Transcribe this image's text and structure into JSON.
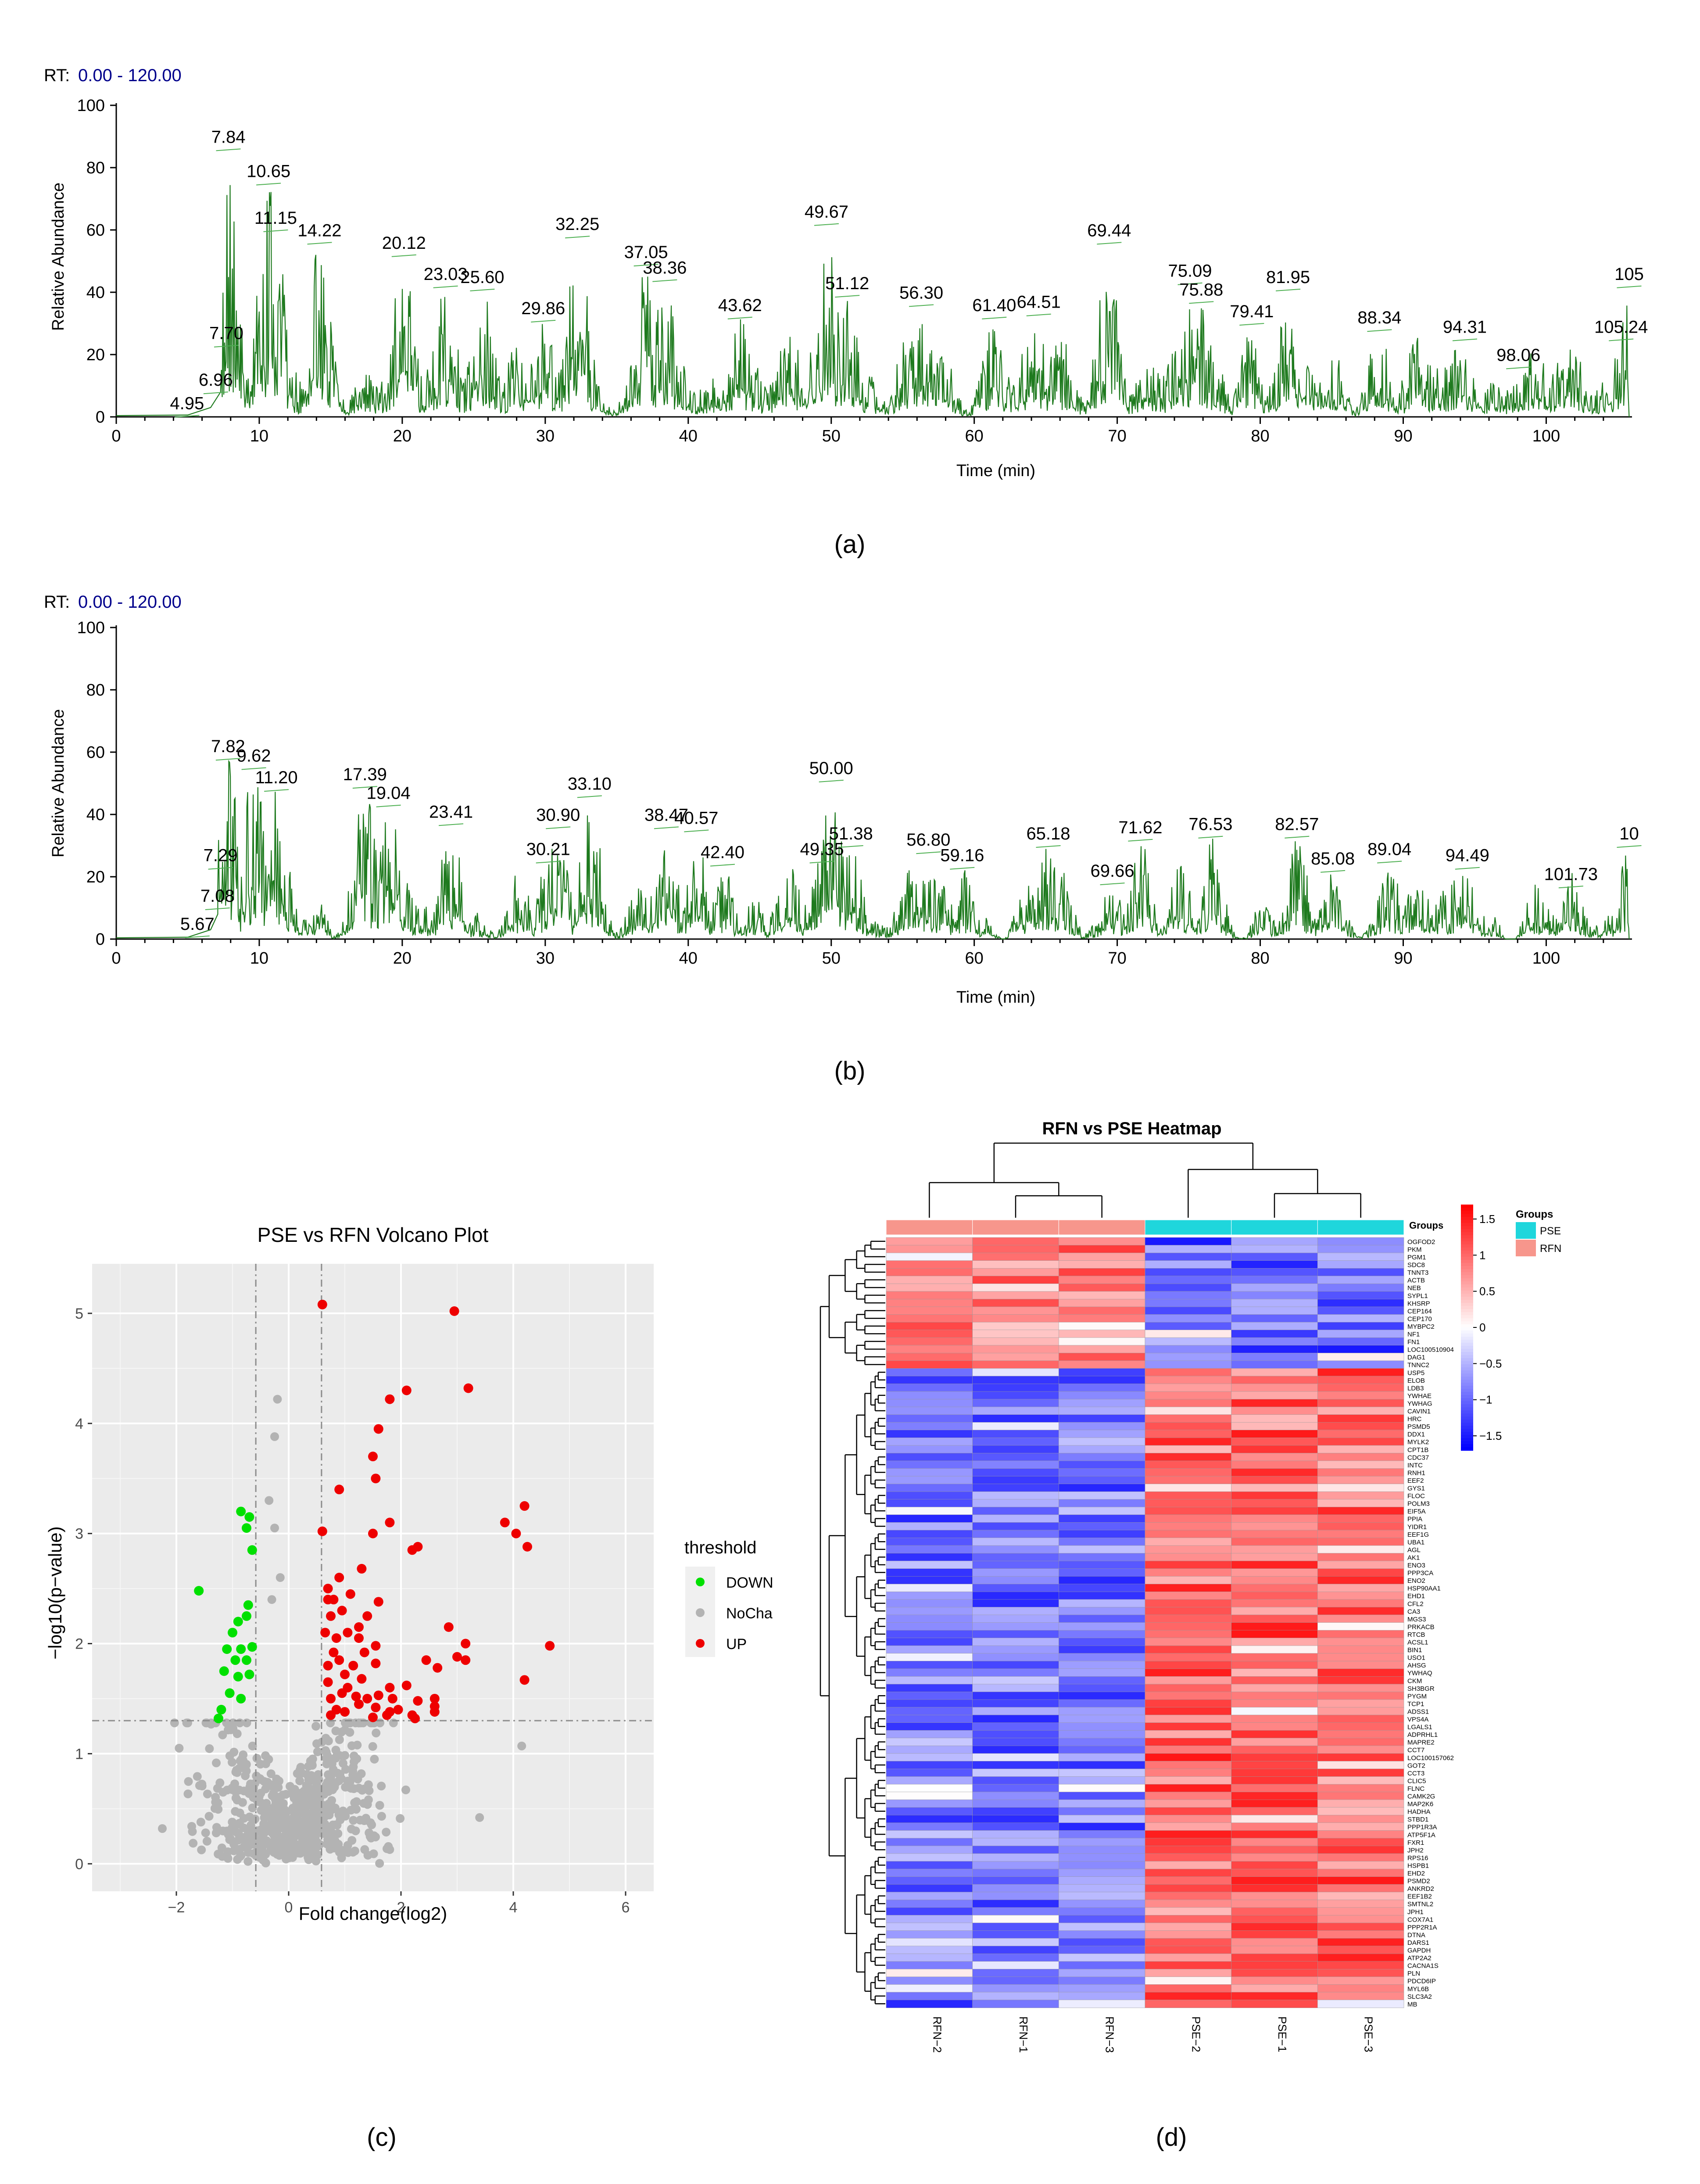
{
  "colors": {
    "chromatogram": "#1e7a1e",
    "down": "#00e000",
    "nocha": "#b3b3b3",
    "up": "#ee0000",
    "heat_low": "#0000ff",
    "heat_mid": "#ffffff",
    "heat_high": "#ff0000",
    "pse_bar": "#1fd6dc",
    "rfn_bar": "#f7968c",
    "rt_label_color": "#00008b"
  },
  "panel_labels": [
    "(a)",
    "(b)",
    "(c)",
    "(d)"
  ],
  "chart_data": [
    {
      "id": "a",
      "type": "line",
      "rt_label": "RT:",
      "rt_range": "0.00 - 120.00",
      "xlabel": "Time (min)",
      "ylabel": "Relative Abundance",
      "xlim": [
        0,
        106
      ],
      "ylim": [
        0,
        100
      ],
      "xticks": [
        "0",
        "10",
        "20",
        "30",
        "40",
        "50",
        "60",
        "70",
        "80",
        "90",
        "100"
      ],
      "yticks": [
        "0",
        "20",
        "40",
        "60",
        "80",
        "100"
      ],
      "annotations": [
        {
          "x": 4.95,
          "y": 0.5,
          "label": "4.95"
        },
        {
          "x": 6.96,
          "y": 8,
          "label": "6.96"
        },
        {
          "x": 7.7,
          "y": 23,
          "label": "7.70"
        },
        {
          "x": 7.84,
          "y": 86,
          "label": "7.84"
        },
        {
          "x": 10.65,
          "y": 75,
          "label": "10.65"
        },
        {
          "x": 11.15,
          "y": 60,
          "label": "11.15"
        },
        {
          "x": 14.22,
          "y": 56,
          "label": "14.22"
        },
        {
          "x": 20.12,
          "y": 52,
          "label": "20.12"
        },
        {
          "x": 23.03,
          "y": 42,
          "label": "23.03"
        },
        {
          "x": 25.6,
          "y": 41,
          "label": "25.60"
        },
        {
          "x": 29.86,
          "y": 31,
          "label": "29.86"
        },
        {
          "x": 32.25,
          "y": 58,
          "label": "32.25"
        },
        {
          "x": 37.05,
          "y": 49,
          "label": "37.05"
        },
        {
          "x": 38.36,
          "y": 44,
          "label": "38.36"
        },
        {
          "x": 43.62,
          "y": 32,
          "label": "43.62"
        },
        {
          "x": 49.67,
          "y": 62,
          "label": "49.67"
        },
        {
          "x": 51.12,
          "y": 39,
          "label": "51.12"
        },
        {
          "x": 56.3,
          "y": 36,
          "label": "56.30"
        },
        {
          "x": 61.4,
          "y": 32,
          "label": "61.40"
        },
        {
          "x": 64.51,
          "y": 33,
          "label": "64.51"
        },
        {
          "x": 69.44,
          "y": 56,
          "label": "69.44"
        },
        {
          "x": 75.09,
          "y": 43,
          "label": "75.09"
        },
        {
          "x": 75.88,
          "y": 37,
          "label": "75.88"
        },
        {
          "x": 79.41,
          "y": 30,
          "label": "79.41"
        },
        {
          "x": 81.95,
          "y": 41,
          "label": "81.95"
        },
        {
          "x": 88.34,
          "y": 28,
          "label": "88.34"
        },
        {
          "x": 94.31,
          "y": 25,
          "label": "94.31"
        },
        {
          "x": 98.06,
          "y": 16,
          "label": "98.06"
        },
        {
          "x": 105.24,
          "y": 25,
          "label": "105.24"
        },
        {
          "x": 105.8,
          "y": 42,
          "label": "105"
        }
      ]
    },
    {
      "id": "b",
      "type": "line",
      "rt_label": "RT:",
      "rt_range": "0.00 - 120.00",
      "xlabel": "Time (min)",
      "ylabel": "Relative Abundance",
      "xlim": [
        0,
        106
      ],
      "ylim": [
        0,
        100
      ],
      "xticks": [
        "0",
        "10",
        "20",
        "30",
        "40",
        "50",
        "60",
        "70",
        "80",
        "90",
        "100"
      ],
      "yticks": [
        "0",
        "20",
        "40",
        "60",
        "80",
        "100"
      ],
      "annotations": [
        {
          "x": 5.67,
          "y": 1,
          "label": "5.67"
        },
        {
          "x": 7.08,
          "y": 10,
          "label": "7.08"
        },
        {
          "x": 7.29,
          "y": 23,
          "label": "7.29"
        },
        {
          "x": 7.82,
          "y": 58,
          "label": "7.82"
        },
        {
          "x": 9.62,
          "y": 55,
          "label": "9.62"
        },
        {
          "x": 11.2,
          "y": 48,
          "label": "11.20"
        },
        {
          "x": 17.39,
          "y": 49,
          "label": "17.39"
        },
        {
          "x": 19.04,
          "y": 43,
          "label": "19.04"
        },
        {
          "x": 23.41,
          "y": 37,
          "label": "23.41"
        },
        {
          "x": 30.21,
          "y": 25,
          "label": "30.21"
        },
        {
          "x": 30.9,
          "y": 36,
          "label": "30.90"
        },
        {
          "x": 33.1,
          "y": 46,
          "label": "33.10"
        },
        {
          "x": 38.47,
          "y": 36,
          "label": "38.47"
        },
        {
          "x": 40.57,
          "y": 35,
          "label": "40.57"
        },
        {
          "x": 42.4,
          "y": 24,
          "label": "42.40"
        },
        {
          "x": 49.35,
          "y": 25,
          "label": "49.35"
        },
        {
          "x": 50.0,
          "y": 51,
          "label": "50.00"
        },
        {
          "x": 51.38,
          "y": 30,
          "label": "51.38"
        },
        {
          "x": 56.8,
          "y": 28,
          "label": "56.80"
        },
        {
          "x": 59.16,
          "y": 23,
          "label": "59.16"
        },
        {
          "x": 65.18,
          "y": 30,
          "label": "65.18"
        },
        {
          "x": 69.66,
          "y": 18,
          "label": "69.66"
        },
        {
          "x": 71.62,
          "y": 32,
          "label": "71.62"
        },
        {
          "x": 76.53,
          "y": 33,
          "label": "76.53"
        },
        {
          "x": 82.57,
          "y": 33,
          "label": "82.57"
        },
        {
          "x": 85.08,
          "y": 22,
          "label": "85.08"
        },
        {
          "x": 89.04,
          "y": 25,
          "label": "89.04"
        },
        {
          "x": 94.49,
          "y": 23,
          "label": "94.49"
        },
        {
          "x": 101.73,
          "y": 17,
          "label": "101.73"
        },
        {
          "x": 105.8,
          "y": 30,
          "label": "10"
        }
      ]
    },
    {
      "id": "c",
      "type": "scatter",
      "title": "PSE vs RFN Volcano Plot",
      "xlabel": "Fold change(log2)",
      "ylabel": "−log10(p−value)",
      "xlim": [
        -3.5,
        6.5
      ],
      "ylim": [
        -0.25,
        5.45
      ],
      "xticks": [
        "−2",
        "0",
        "2",
        "4",
        "6"
      ],
      "yticks": [
        "0",
        "1",
        "2",
        "3",
        "4",
        "5"
      ],
      "thresholds": {
        "fc": [
          -0.585,
          0.585
        ],
        "p": 1.3
      },
      "legend_title": "threshold",
      "legend": [
        "DOWN",
        "NoCha",
        "UP"
      ],
      "series": [
        {
          "name": "DOWN",
          "points": [
            [
              -1.6,
              2.48
            ],
            [
              -0.85,
              3.2
            ],
            [
              -0.7,
              3.15
            ],
            [
              -0.75,
              3.05
            ],
            [
              -0.65,
              2.85
            ],
            [
              -0.72,
              2.35
            ],
            [
              -0.9,
              2.2
            ],
            [
              -0.75,
              2.25
            ],
            [
              -1.0,
              2.1
            ],
            [
              -1.1,
              1.95
            ],
            [
              -0.85,
              1.95
            ],
            [
              -0.65,
              1.97
            ],
            [
              -0.95,
              1.85
            ],
            [
              -0.75,
              1.85
            ],
            [
              -1.15,
              1.75
            ],
            [
              -0.9,
              1.7
            ],
            [
              -0.7,
              1.72
            ],
            [
              -1.05,
              1.55
            ],
            [
              -0.85,
              1.5
            ],
            [
              -1.2,
              1.4
            ],
            [
              -1.25,
              1.32
            ]
          ]
        },
        {
          "name": "UP",
          "points": [
            [
              0.6,
              5.08
            ],
            [
              2.95,
              5.02
            ],
            [
              2.1,
              4.3
            ],
            [
              3.2,
              4.32
            ],
            [
              1.8,
              4.22
            ],
            [
              1.6,
              3.95
            ],
            [
              1.5,
              3.7
            ],
            [
              0.9,
              3.4
            ],
            [
              1.55,
              3.5
            ],
            [
              4.2,
              3.25
            ],
            [
              3.85,
              3.1
            ],
            [
              4.05,
              3.0
            ],
            [
              4.25,
              2.88
            ],
            [
              1.8,
              3.1
            ],
            [
              1.5,
              3.0
            ],
            [
              2.3,
              2.88
            ],
            [
              2.2,
              2.85
            ],
            [
              0.6,
              3.02
            ],
            [
              1.3,
              2.68
            ],
            [
              0.9,
              2.6
            ],
            [
              1.1,
              2.45
            ],
            [
              0.7,
              2.5
            ],
            [
              0.8,
              2.4
            ],
            [
              0.7,
              2.4
            ],
            [
              1.6,
              2.38
            ],
            [
              1.4,
              2.25
            ],
            [
              0.95,
              2.3
            ],
            [
              0.75,
              2.25
            ],
            [
              1.25,
              2.15
            ],
            [
              1.05,
              2.1
            ],
            [
              0.85,
              2.05
            ],
            [
              1.25,
              2.05
            ],
            [
              1.55,
              1.98
            ],
            [
              0.65,
              2.1
            ],
            [
              2.85,
              2.15
            ],
            [
              3.0,
              1.88
            ],
            [
              3.15,
              1.85
            ],
            [
              3.15,
              2.0
            ],
            [
              4.65,
              1.98
            ],
            [
              0.8,
              1.92
            ],
            [
              1.35,
              1.92
            ],
            [
              1.55,
              1.82
            ],
            [
              0.9,
              1.85
            ],
            [
              1.15,
              1.8
            ],
            [
              0.7,
              1.8
            ],
            [
              2.45,
              1.85
            ],
            [
              2.65,
              1.78
            ],
            [
              1.0,
              1.72
            ],
            [
              1.3,
              1.68
            ],
            [
              1.8,
              1.6
            ],
            [
              0.7,
              1.65
            ],
            [
              2.1,
              1.62
            ],
            [
              1.05,
              1.6
            ],
            [
              0.95,
              1.55
            ],
            [
              1.6,
              1.53
            ],
            [
              1.4,
              1.5
            ],
            [
              1.2,
              1.52
            ],
            [
              0.75,
              1.5
            ],
            [
              1.85,
              1.5
            ],
            [
              2.3,
              1.48
            ],
            [
              2.6,
              1.5
            ],
            [
              1.25,
              1.45
            ],
            [
              1.55,
              1.42
            ],
            [
              0.85,
              1.4
            ],
            [
              1.0,
              1.38
            ],
            [
              1.95,
              1.4
            ],
            [
              2.2,
              1.35
            ],
            [
              2.6,
              1.38
            ],
            [
              2.6,
              1.43
            ],
            [
              0.75,
              1.35
            ],
            [
              1.5,
              1.33
            ],
            [
              1.75,
              1.35
            ],
            [
              1.8,
              1.38
            ],
            [
              2.25,
              1.32
            ],
            [
              4.2,
              1.67
            ]
          ]
        }
      ]
    },
    {
      "id": "d",
      "type": "heatmap",
      "title": "RFN vs PSE Heatmap",
      "groups_header": "Groups",
      "legend_title": "Groups",
      "legend": [
        "PSE",
        "RFN"
      ],
      "columns": [
        "RFN−2",
        "RFN−1",
        "RFN−3",
        "PSE−2",
        "PSE−1",
        "PSE−3"
      ],
      "column_groups": [
        "RFN",
        "RFN",
        "RFN",
        "PSE",
        "PSE",
        "PSE"
      ],
      "colorbar_ticks": [
        "1.5",
        "1",
        "0.5",
        "0",
        "−0.5",
        "−1",
        "−1.5"
      ],
      "colorbar_range": [
        -1.7,
        1.7
      ],
      "rows": [
        "OGFOD2",
        "PKM",
        "PGM1",
        "SDC8",
        "TNNT3",
        "ACTB",
        "NEB",
        "SYPL1",
        "KHSRP",
        "CEP164",
        "CEP170",
        "MYBPC2",
        "NF1",
        "FN1",
        "LOC100510904",
        "DAG1",
        "TNNC2",
        "USP5",
        "ELOB",
        "LDB3",
        "YWHAE",
        "YWHAG",
        "CAVIN1",
        "HRC",
        "PSMD5",
        "DDX1",
        "MYLK2",
        "CPT1B",
        "CDC37",
        "INTC",
        "RNH1",
        "EEF2",
        "GYS1",
        "FLOC",
        "POLM3",
        "EIF5A",
        "PPIA",
        "YIDR1",
        "EEF1G",
        "UBA1",
        "AGL",
        "AK1",
        "ENO3",
        "PPP3CA",
        "ENO2",
        "HSP90AA1",
        "EHD1",
        "CFL2",
        "CA3",
        "MGS3",
        "PRKACB",
        "RTCB",
        "ACSL1",
        "BIN1",
        "USO1",
        "AHSG",
        "YWHAQ",
        "CKM",
        "SH3BGR",
        "PYGM",
        "TCP1",
        "ADSS1",
        "VPS4A",
        "LGALS1",
        "ADPRHL1",
        "MAPRE2",
        "CCT7",
        "LOC100157062",
        "GOT2",
        "CCT3",
        "CLIC5",
        "FLNC",
        "CAMK2G",
        "MAP2K6",
        "HADHA",
        "STBD1",
        "PPP1R3A",
        "ATP5F1A",
        "FXR1",
        "JPH2",
        "RPS16",
        "HSPB1",
        "EHD2",
        "PSMD2",
        "ANKRD2",
        "EEF1B2",
        "SMTNL2",
        "JPH1",
        "COX7A1",
        "PPP2R1A",
        "DTNA",
        "DARS1",
        "GAPDH",
        "ATP2A2",
        "CACNA1S",
        "PLN",
        "PDCD6IP",
        "MYL6B",
        "SLC3A2",
        "MB"
      ]
    }
  ]
}
